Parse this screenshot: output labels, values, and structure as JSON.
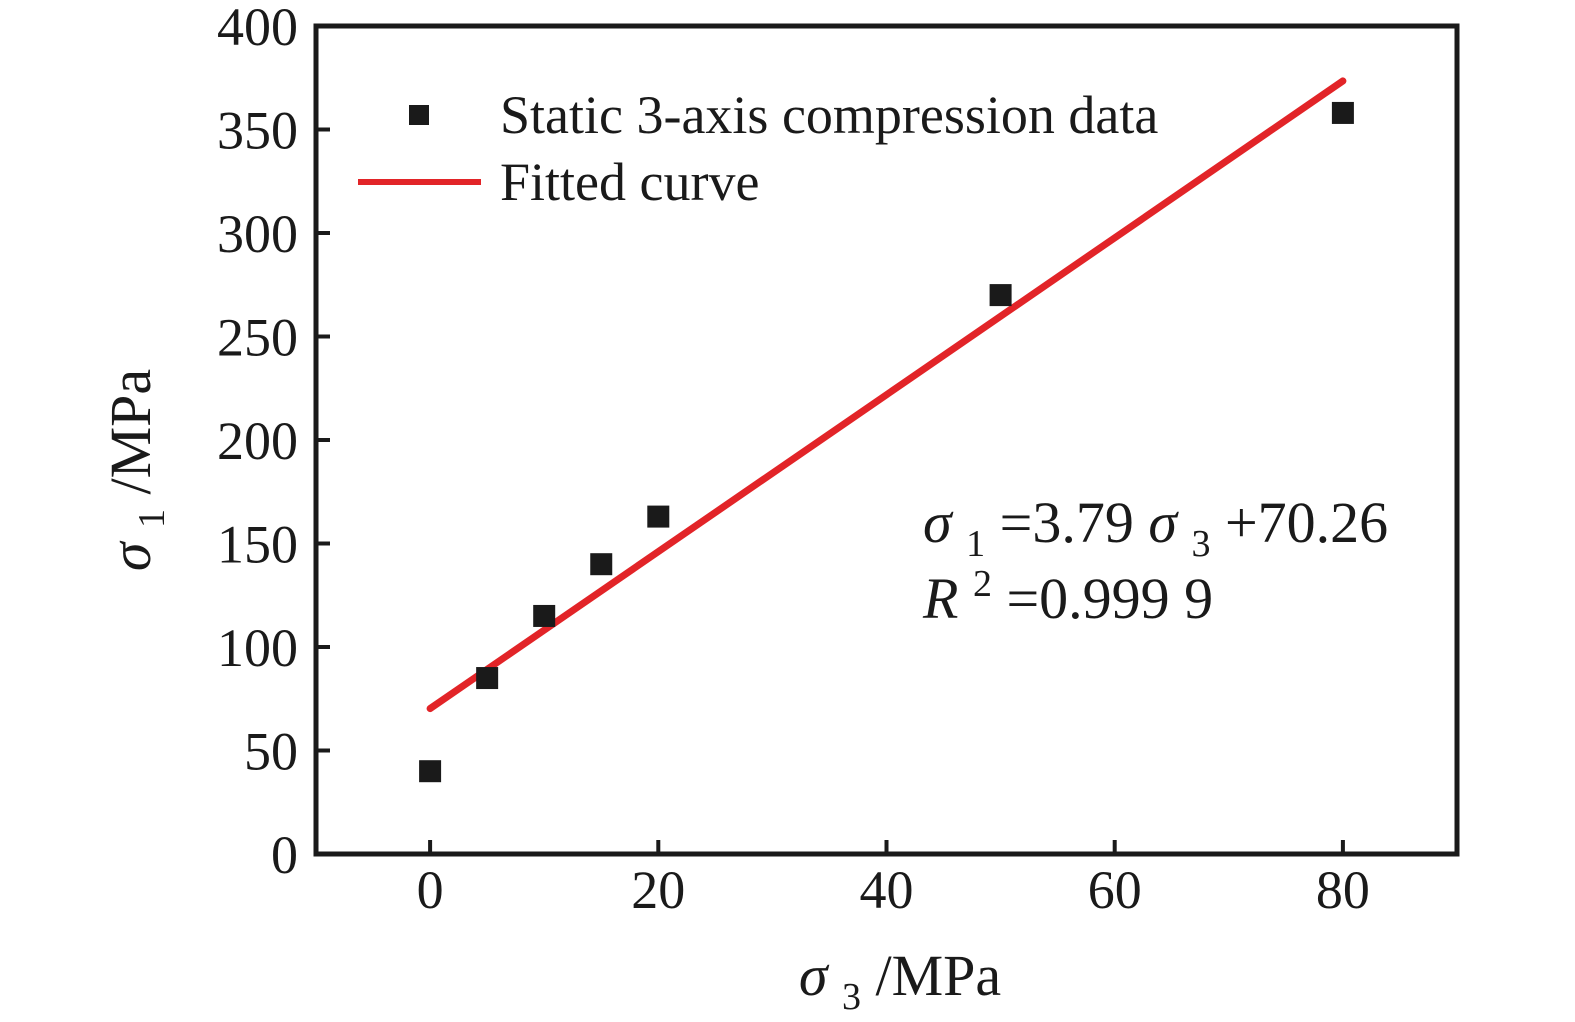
{
  "chart_data": {
    "type": "scatter",
    "title": "",
    "xlabel": {
      "sym": "σ",
      "sub": "3",
      "rest": "/MPa"
    },
    "ylabel": {
      "sym": "σ",
      "sub": "1",
      "rest": "/MPa"
    },
    "xlim": [
      -10,
      90
    ],
    "ylim": [
      0,
      400
    ],
    "xticks": [
      0,
      20,
      40,
      60,
      80
    ],
    "yticks": [
      0,
      50,
      100,
      150,
      200,
      250,
      300,
      350,
      400
    ],
    "grid": false,
    "legend_position": "top-left-inside",
    "frame_color": "#1a1a1a",
    "series": [
      {
        "name": "Static 3-axis compression data",
        "type": "scatter",
        "marker": "square",
        "color": "#1a1a1a",
        "points": [
          [
            0,
            40
          ],
          [
            5,
            85
          ],
          [
            10,
            115
          ],
          [
            15,
            140
          ],
          [
            20,
            163
          ],
          [
            50,
            270
          ],
          [
            80,
            358
          ]
        ]
      },
      {
        "name": "Fitted curve",
        "type": "line",
        "color": "#e22428",
        "fit": {
          "slope": 3.79,
          "intercept": 70.26,
          "x_start": 0,
          "x_end": 80
        }
      }
    ],
    "annotation": {
      "line1": {
        "sym1": "σ",
        "sub1": "1",
        "mid": "=3.79",
        "sym2": "σ",
        "sub2": "3",
        "tail": "+70.26"
      },
      "line2": {
        "base": "R",
        "sup": "2",
        "tail": "=0.999 9"
      }
    }
  }
}
